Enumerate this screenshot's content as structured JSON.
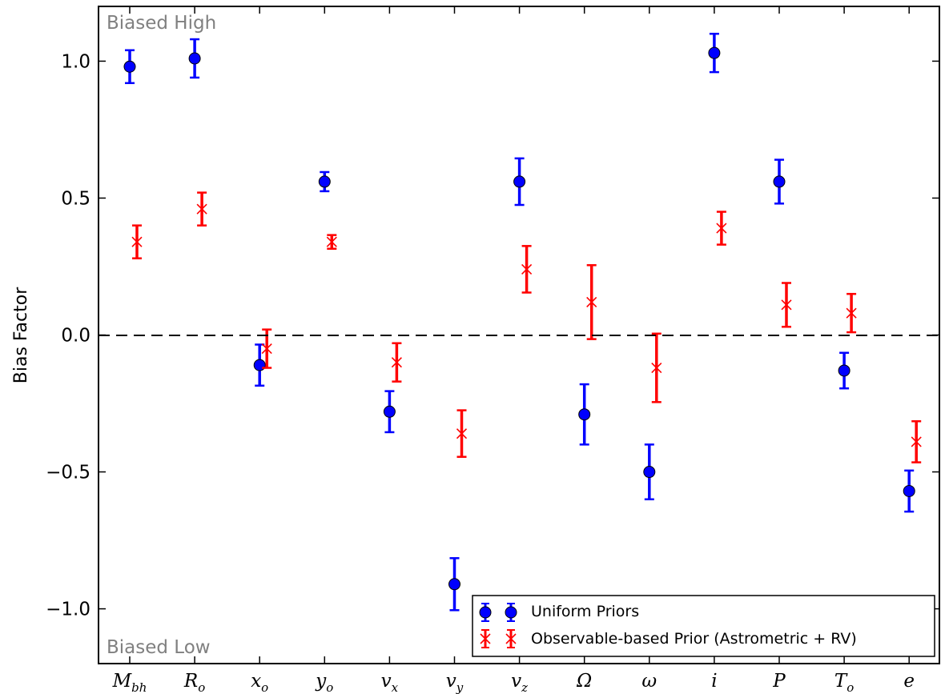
{
  "chart_data": {
    "type": "scatter",
    "title": "",
    "xlabel": "",
    "ylabel": "Bias Factor",
    "ylim": [
      -1.2,
      1.2
    ],
    "yticks": [
      -1.0,
      -0.5,
      0.0,
      0.5,
      1.0
    ],
    "ytick_labels": [
      "−1.0",
      "−0.5",
      "0.0",
      "0.5",
      "1.0"
    ],
    "zero_line": "dashed",
    "grid": false,
    "legend_position": "bottom-right",
    "annotations": {
      "top": "Biased High",
      "bottom": "Biased Low"
    },
    "categories": [
      {
        "base": "M",
        "sub": "bh"
      },
      {
        "base": "R",
        "sub": "o"
      },
      {
        "base": "x",
        "sub": "o"
      },
      {
        "base": "y",
        "sub": "o"
      },
      {
        "base": "v",
        "sub": "x"
      },
      {
        "base": "v",
        "sub": "y"
      },
      {
        "base": "v",
        "sub": "z"
      },
      {
        "base": "Ω",
        "sub": ""
      },
      {
        "base": "ω",
        "sub": ""
      },
      {
        "base": "i",
        "sub": ""
      },
      {
        "base": "P",
        "sub": ""
      },
      {
        "base": "T",
        "sub": "o"
      },
      {
        "base": "e",
        "sub": ""
      }
    ],
    "series": [
      {
        "name": "Uniform Priors",
        "marker": "circle",
        "color": "#0000ff",
        "values": [
          0.98,
          1.01,
          -0.11,
          0.56,
          -0.28,
          -0.91,
          0.56,
          -0.29,
          -0.5,
          1.03,
          0.56,
          -0.13,
          -0.57
        ],
        "errors": [
          0.06,
          0.07,
          0.075,
          0.035,
          0.075,
          0.095,
          0.085,
          0.11,
          0.1,
          0.07,
          0.08,
          0.065,
          0.075
        ]
      },
      {
        "name": "Observable-based Prior (Astrometric + RV)",
        "marker": "x",
        "color": "#ff0000",
        "values": [
          0.34,
          0.46,
          -0.05,
          0.34,
          -0.1,
          -0.36,
          0.24,
          0.12,
          -0.12,
          0.39,
          0.11,
          0.08,
          -0.39
        ],
        "errors": [
          0.06,
          0.06,
          0.07,
          0.025,
          0.07,
          0.085,
          0.085,
          0.135,
          0.125,
          0.06,
          0.08,
          0.07,
          0.075
        ]
      }
    ]
  }
}
